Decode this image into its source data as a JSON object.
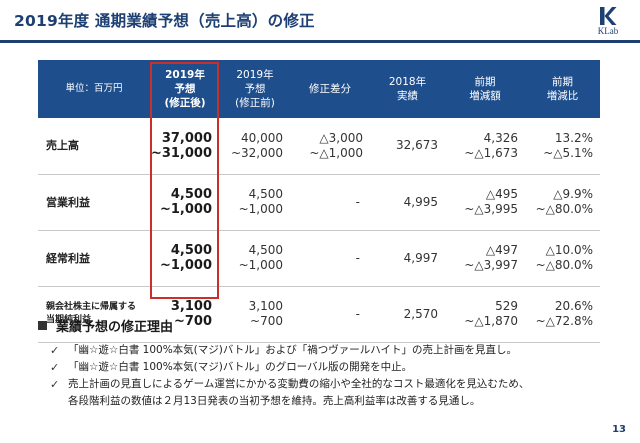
{
  "header": {
    "title": "2019年度 通期業績予想（売上高）の修正",
    "logo_text": "KLab",
    "accent_color": "#1d3f72"
  },
  "table": {
    "headers": [
      [
        "単位：百万円"
      ],
      [
        "2019年",
        "予想",
        "(修正後)"
      ],
      [
        "2019年",
        "予想",
        "(修正前)"
      ],
      [
        "修正差分"
      ],
      [
        "2018年",
        "実績"
      ],
      [
        "前期",
        "増減額"
      ],
      [
        "前期",
        "増減比"
      ]
    ],
    "rows": [
      {
        "label": [
          "売上高"
        ],
        "revised": [
          "37,000",
          "~31,000"
        ],
        "previous": [
          "40,000",
          "~32,000"
        ],
        "diff": [
          "△3,000",
          "~△1,000"
        ],
        "actual_2018": [
          "32,673"
        ],
        "yoy_amount": [
          "4,326",
          "~△1,673"
        ],
        "yoy_ratio": [
          "13.2%",
          "~△5.1%"
        ]
      },
      {
        "label": [
          "営業利益"
        ],
        "revised": [
          "4,500",
          "~1,000"
        ],
        "previous": [
          "4,500",
          "~1,000"
        ],
        "diff": [
          "-"
        ],
        "actual_2018": [
          "4,995"
        ],
        "yoy_amount": [
          "△495",
          "~△3,995"
        ],
        "yoy_ratio": [
          "△9.9%",
          "~△80.0%"
        ]
      },
      {
        "label": [
          "経常利益"
        ],
        "revised": [
          "4,500",
          "~1,000"
        ],
        "previous": [
          "4,500",
          "~1,000"
        ],
        "diff": [
          "-"
        ],
        "actual_2018": [
          "4,997"
        ],
        "yoy_amount": [
          "△497",
          "~△3,997"
        ],
        "yoy_ratio": [
          "△10.0%",
          "~△80.0%"
        ]
      },
      {
        "label": [
          "親会社株主に帰属する",
          "当期純利益"
        ],
        "revised": [
          "3,100",
          "~700"
        ],
        "previous": [
          "3,100",
          "~700"
        ],
        "diff": [
          "-"
        ],
        "actual_2018": [
          "2,570"
        ],
        "yoy_amount": [
          "529",
          "~△1,870"
        ],
        "yoy_ratio": [
          "20.6%",
          "~△72.8%"
        ]
      }
    ],
    "header_color": "#1f4e8c",
    "highlight_color": "#c9302c"
  },
  "reasons": {
    "heading": "業績予想の修正理由",
    "items": [
      [
        "「幽☆遊☆白書 100%本気(マジ)バトル」および「禍つヴァールハイト」の売上計画を見直し。"
      ],
      [
        "「幽☆遊☆白書 100%本気(マジ)バトル」のグローバル版の開発を中止。"
      ],
      [
        "売上計画の見直しによるゲーム運営にかかる変動費の縮小や全社的なコスト最適化を見込むため、",
        "各段階利益の数値は２月13日発表の当初予想を維持。売上高利益率は改善する見通し。"
      ]
    ]
  },
  "page_number": "13"
}
